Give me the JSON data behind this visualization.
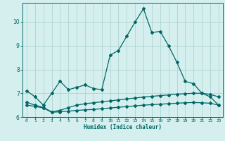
{
  "xlabel": "Humidex (Indice chaleur)",
  "bg_color": "#d4efee",
  "line_color": "#006666",
  "grid_color": "#aed4d2",
  "x_data": [
    0,
    1,
    2,
    3,
    4,
    5,
    6,
    7,
    8,
    9,
    10,
    11,
    12,
    13,
    14,
    15,
    16,
    17,
    18,
    19,
    20,
    21,
    22,
    23
  ],
  "line1": [
    7.1,
    6.85,
    6.5,
    7.0,
    7.5,
    7.15,
    7.25,
    7.35,
    7.2,
    7.15,
    8.6,
    8.8,
    9.4,
    10.0,
    10.55,
    9.55,
    9.6,
    9.0,
    8.3,
    7.5,
    7.4,
    7.0,
    6.85,
    6.5
  ],
  "line2": [
    6.62,
    6.5,
    6.4,
    6.22,
    6.28,
    6.4,
    6.5,
    6.56,
    6.6,
    6.64,
    6.68,
    6.72,
    6.76,
    6.8,
    6.84,
    6.87,
    6.9,
    6.93,
    6.96,
    6.98,
    7.0,
    7.0,
    6.95,
    6.85
  ],
  "line3": [
    6.5,
    6.45,
    6.38,
    6.2,
    6.22,
    6.25,
    6.28,
    6.3,
    6.32,
    6.35,
    6.38,
    6.41,
    6.44,
    6.47,
    6.5,
    6.52,
    6.54,
    6.56,
    6.58,
    6.6,
    6.61,
    6.6,
    6.58,
    6.5
  ],
  "ylim": [
    6.0,
    10.8
  ],
  "yticks": [
    6,
    7,
    8,
    9,
    10
  ],
  "xticks": [
    0,
    1,
    2,
    3,
    4,
    5,
    6,
    7,
    8,
    9,
    10,
    11,
    12,
    13,
    14,
    15,
    16,
    17,
    18,
    19,
    20,
    21,
    22,
    23
  ]
}
